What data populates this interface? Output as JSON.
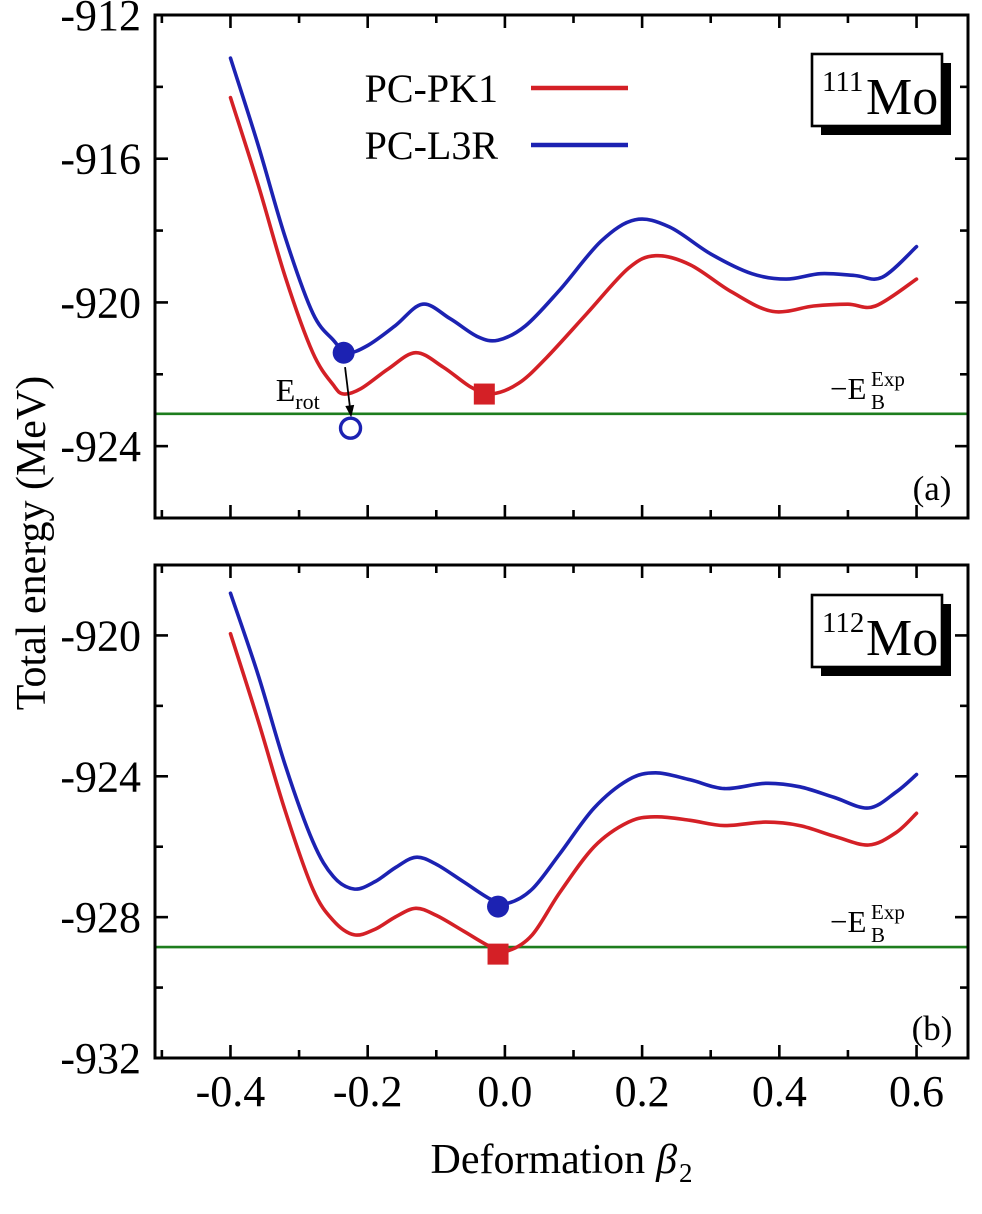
{
  "figure": {
    "y_axis_title": "Total energy (MeV)",
    "x_axis_title": {
      "prefix": "Deformation",
      "symbol": "β",
      "subscript": "2"
    },
    "colors": {
      "red": "#d42026",
      "blue": "#1c22b2",
      "green": "#1e7d1e",
      "axis": "#000000",
      "panel_label": "#2e2e2e"
    },
    "x_tick_labels": {
      "values": [
        -0.4,
        -0.2,
        0.0,
        0.2,
        0.4,
        0.6
      ],
      "labels": [
        "-0.4",
        "-0.2",
        "0.0",
        "0.2",
        "0.4",
        "0.6"
      ]
    }
  },
  "chart_data": [
    {
      "type": "line",
      "panel": "a",
      "panel_label": "(a)",
      "isotope": {
        "mass": "111",
        "element": "Mo"
      },
      "xlabel": "Deformation β2",
      "ylabel": "Total energy (MeV)",
      "xlim": [
        -0.51,
        0.675
      ],
      "ylim": [
        -926,
        -912
      ],
      "grid": false,
      "x_major_ticks": [
        -0.4,
        -0.2,
        0.0,
        0.2,
        0.4,
        0.6
      ],
      "x_minor_ticks": [
        -0.5,
        -0.3,
        -0.1,
        0.1,
        0.3,
        0.5
      ],
      "y_major_ticks": [
        -924,
        -920,
        -916,
        -912
      ],
      "y_minor_ticks": [
        -926,
        -922,
        -918,
        -914
      ],
      "y_tick_labels": {
        "values": [
          -912,
          -916,
          -920,
          -924
        ],
        "labels": [
          "-912",
          "-916",
          "-920",
          "-924"
        ]
      },
      "show_x_tick_labels": false,
      "legend": [
        {
          "label": "PC-PK1",
          "color": "red"
        },
        {
          "label": "PC-L3R",
          "color": "blue"
        }
      ],
      "series": [
        {
          "name": "PC-PK1",
          "color": "red",
          "points": [
            [
              -0.4,
              -914.3
            ],
            [
              -0.36,
              -916.7
            ],
            [
              -0.32,
              -919.3
            ],
            [
              -0.28,
              -921.4
            ],
            [
              -0.25,
              -922.3
            ],
            [
              -0.235,
              -922.55
            ],
            [
              -0.21,
              -922.4
            ],
            [
              -0.17,
              -921.85
            ],
            [
              -0.13,
              -921.4
            ],
            [
              -0.09,
              -921.8
            ],
            [
              -0.05,
              -922.35
            ],
            [
              -0.02,
              -922.55
            ],
            [
              0.02,
              -922.25
            ],
            [
              0.06,
              -921.55
            ],
            [
              0.12,
              -920.3
            ],
            [
              0.18,
              -919.05
            ],
            [
              0.22,
              -918.7
            ],
            [
              0.27,
              -918.95
            ],
            [
              0.33,
              -919.7
            ],
            [
              0.39,
              -920.25
            ],
            [
              0.45,
              -920.1
            ],
            [
              0.5,
              -920.05
            ],
            [
              0.54,
              -920.1
            ],
            [
              0.6,
              -919.35
            ]
          ]
        },
        {
          "name": "PC-L3R",
          "color": "blue",
          "points": [
            [
              -0.4,
              -913.2
            ],
            [
              -0.36,
              -915.6
            ],
            [
              -0.32,
              -918.2
            ],
            [
              -0.28,
              -920.3
            ],
            [
              -0.25,
              -921.05
            ],
            [
              -0.23,
              -921.4
            ],
            [
              -0.2,
              -921.2
            ],
            [
              -0.16,
              -920.65
            ],
            [
              -0.12,
              -920.05
            ],
            [
              -0.08,
              -920.45
            ],
            [
              -0.04,
              -920.95
            ],
            [
              -0.01,
              -921.05
            ],
            [
              0.03,
              -920.65
            ],
            [
              0.08,
              -919.65
            ],
            [
              0.14,
              -918.3
            ],
            [
              0.19,
              -917.7
            ],
            [
              0.24,
              -917.9
            ],
            [
              0.3,
              -918.65
            ],
            [
              0.36,
              -919.2
            ],
            [
              0.41,
              -919.35
            ],
            [
              0.46,
              -919.2
            ],
            [
              0.51,
              -919.25
            ],
            [
              0.55,
              -919.3
            ],
            [
              0.6,
              -918.45
            ]
          ]
        }
      ],
      "exp_line": {
        "value": -923.1,
        "label": {
          "main": "−E",
          "sup": "Exp",
          "sub": "B"
        }
      },
      "markers": [
        {
          "shape": "circle",
          "color": "blue",
          "x": -0.235,
          "y": -921.4
        },
        {
          "shape": "open-circle",
          "color": "blue",
          "x": -0.225,
          "y": -923.5
        },
        {
          "shape": "square",
          "color": "red",
          "x": -0.03,
          "y": -922.55
        }
      ],
      "annotation": {
        "label": {
          "main": "E",
          "sub": "rot"
        },
        "x": -0.334,
        "y": -922.75,
        "arrow": {
          "from": [
            -0.233,
            -921.8
          ],
          "to": [
            -0.224,
            -923.2
          ]
        }
      }
    },
    {
      "type": "line",
      "panel": "b",
      "panel_label": "(b)",
      "isotope": {
        "mass": "112",
        "element": "Mo"
      },
      "xlabel": "Deformation β2",
      "ylabel": "Total energy (MeV)",
      "xlim": [
        -0.51,
        0.675
      ],
      "ylim": [
        -932,
        -918
      ],
      "grid": false,
      "x_major_ticks": [
        -0.4,
        -0.2,
        0.0,
        0.2,
        0.4,
        0.6
      ],
      "x_minor_ticks": [
        -0.5,
        -0.3,
        -0.1,
        0.1,
        0.3,
        0.5
      ],
      "y_major_ticks": [
        -932,
        -928,
        -924,
        -920
      ],
      "y_minor_ticks": [
        -930,
        -926,
        -922,
        -918
      ],
      "y_tick_labels": {
        "values": [
          -920,
          -924,
          -928,
          -932
        ],
        "labels": [
          "-920",
          "-924",
          "-928",
          "-932"
        ]
      },
      "show_x_tick_labels": true,
      "legend": [],
      "series": [
        {
          "name": "PC-PK1",
          "color": "red",
          "points": [
            [
              -0.4,
              -919.95
            ],
            [
              -0.36,
              -922.4
            ],
            [
              -0.32,
              -925.0
            ],
            [
              -0.28,
              -927.2
            ],
            [
              -0.25,
              -928.1
            ],
            [
              -0.22,
              -928.5
            ],
            [
              -0.19,
              -928.35
            ],
            [
              -0.16,
              -928.0
            ],
            [
              -0.13,
              -927.75
            ],
            [
              -0.1,
              -927.95
            ],
            [
              -0.06,
              -928.4
            ],
            [
              -0.02,
              -928.85
            ],
            [
              0.005,
              -928.95
            ],
            [
              0.04,
              -928.5
            ],
            [
              0.08,
              -927.3
            ],
            [
              0.13,
              -926.0
            ],
            [
              0.18,
              -925.3
            ],
            [
              0.22,
              -925.15
            ],
            [
              0.27,
              -925.25
            ],
            [
              0.32,
              -925.4
            ],
            [
              0.38,
              -925.3
            ],
            [
              0.43,
              -925.4
            ],
            [
              0.48,
              -925.7
            ],
            [
              0.53,
              -925.95
            ],
            [
              0.57,
              -925.6
            ],
            [
              0.6,
              -925.05
            ]
          ]
        },
        {
          "name": "PC-L3R",
          "color": "blue",
          "points": [
            [
              -0.4,
              -918.8
            ],
            [
              -0.36,
              -921.1
            ],
            [
              -0.32,
              -923.7
            ],
            [
              -0.28,
              -925.85
            ],
            [
              -0.25,
              -926.85
            ],
            [
              -0.22,
              -927.2
            ],
            [
              -0.19,
              -927.0
            ],
            [
              -0.16,
              -926.6
            ],
            [
              -0.13,
              -926.3
            ],
            [
              -0.1,
              -926.5
            ],
            [
              -0.06,
              -927.0
            ],
            [
              -0.02,
              -927.5
            ],
            [
              0.005,
              -927.6
            ],
            [
              0.04,
              -927.2
            ],
            [
              0.08,
              -926.2
            ],
            [
              0.13,
              -924.9
            ],
            [
              0.18,
              -924.1
            ],
            [
              0.22,
              -923.9
            ],
            [
              0.27,
              -924.1
            ],
            [
              0.32,
              -924.35
            ],
            [
              0.38,
              -924.2
            ],
            [
              0.43,
              -924.3
            ],
            [
              0.48,
              -924.6
            ],
            [
              0.53,
              -924.9
            ],
            [
              0.57,
              -924.45
            ],
            [
              0.6,
              -923.95
            ]
          ]
        }
      ],
      "exp_line": {
        "value": -928.85,
        "label": {
          "main": "−E",
          "sup": "Exp",
          "sub": "B"
        }
      },
      "markers": [
        {
          "shape": "circle",
          "color": "blue",
          "x": -0.01,
          "y": -927.7
        },
        {
          "shape": "square",
          "color": "red",
          "x": -0.01,
          "y": -929.05
        }
      ],
      "annotation": null
    }
  ]
}
